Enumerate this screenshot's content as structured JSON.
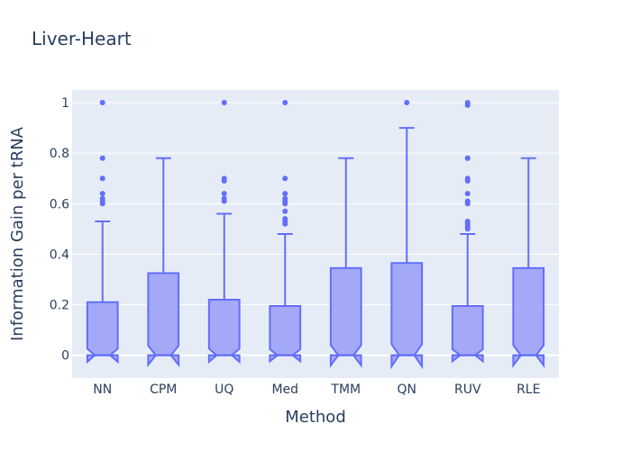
{
  "chart_data": {
    "type": "box",
    "title": "Liver-Heart",
    "xlabel": "Method",
    "ylabel": "Information Gain per tRNA",
    "ylim": [
      -0.09,
      1.05
    ],
    "yticks": [
      0,
      0.2,
      0.4,
      0.6,
      0.8,
      1
    ],
    "ytick_labels": [
      "0",
      "0.2",
      "0.4",
      "0.6",
      "0.8",
      "1"
    ],
    "categories": [
      "NN",
      "CPM",
      "UQ",
      "Med",
      "TMM",
      "QN",
      "RUV",
      "RLE"
    ],
    "notched": true,
    "grid": true,
    "colors": {
      "box_line": "#636efa",
      "box_fill": "#a3a9f7",
      "plot_bg": "#e5ecf6",
      "text": "#2a3f5f"
    },
    "boxes": [
      {
        "category": "NN",
        "lowerfence": 0,
        "q1": 0,
        "median": 0,
        "q3": 0.21,
        "upperfence": 0.53,
        "notch": [
          -0.026,
          0.026
        ],
        "outliers": [
          0.6,
          0.61,
          0.62,
          0.64,
          0.7,
          0.78,
          1
        ]
      },
      {
        "category": "CPM",
        "lowerfence": 0,
        "q1": 0,
        "median": 0,
        "q3": 0.325,
        "upperfence": 0.78,
        "notch": [
          -0.038,
          0.038
        ],
        "outliers": []
      },
      {
        "category": "UQ",
        "lowerfence": 0,
        "q1": 0,
        "median": 0,
        "q3": 0.22,
        "upperfence": 0.56,
        "notch": [
          -0.026,
          0.026
        ],
        "outliers": [
          0.61,
          0.62,
          0.64,
          0.69,
          0.7,
          1
        ]
      },
      {
        "category": "Med",
        "lowerfence": 0,
        "q1": 0,
        "median": 0,
        "q3": 0.195,
        "upperfence": 0.48,
        "notch": [
          -0.024,
          0.024
        ],
        "outliers": [
          0.52,
          0.53,
          0.54,
          0.57,
          0.6,
          0.61,
          0.62,
          0.64,
          0.7,
          1
        ]
      },
      {
        "category": "TMM",
        "lowerfence": 0,
        "q1": 0,
        "median": 0,
        "q3": 0.345,
        "upperfence": 0.78,
        "notch": [
          -0.04,
          0.04
        ],
        "outliers": []
      },
      {
        "category": "QN",
        "lowerfence": 0,
        "q1": 0,
        "median": 0,
        "q3": 0.365,
        "upperfence": 0.9,
        "notch": [
          -0.044,
          0.044
        ],
        "outliers": [
          1
        ]
      },
      {
        "category": "RUV",
        "lowerfence": 0,
        "q1": 0,
        "median": 0,
        "q3": 0.195,
        "upperfence": 0.48,
        "notch": [
          -0.024,
          0.024
        ],
        "outliers": [
          0.5,
          0.51,
          0.52,
          0.53,
          0.6,
          0.61,
          0.64,
          0.69,
          0.7,
          0.78,
          0.78,
          0.99,
          1
        ]
      },
      {
        "category": "RLE",
        "lowerfence": 0,
        "q1": 0,
        "median": 0,
        "q3": 0.345,
        "upperfence": 0.78,
        "notch": [
          -0.04,
          0.04
        ],
        "outliers": []
      }
    ]
  }
}
